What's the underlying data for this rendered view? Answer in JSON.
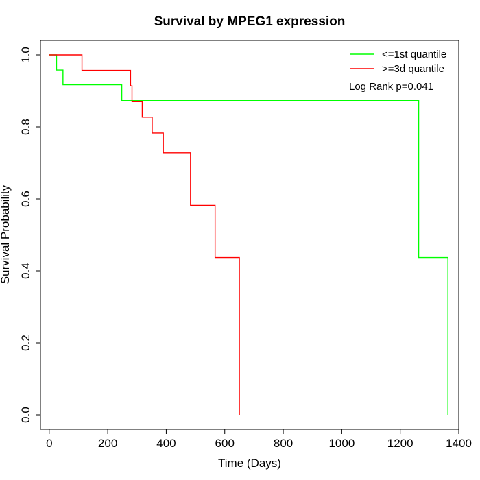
{
  "chart_data": {
    "type": "line",
    "title": "Survival by MPEG1 expression",
    "xlabel": "Time (Days)",
    "ylabel": "Survival Probability",
    "xlim": [
      -30,
      1400
    ],
    "ylim": [
      -0.04,
      1.04
    ],
    "xticks": [
      0,
      200,
      400,
      600,
      800,
      1000,
      1200,
      1400
    ],
    "yticks": [
      0.0,
      0.2,
      0.4,
      0.6,
      0.8,
      1.0
    ],
    "xtick_labels": [
      "0",
      "200",
      "400",
      "600",
      "800",
      "1000",
      "1200",
      "1400"
    ],
    "ytick_labels": [
      "0.0",
      "0.2",
      "0.4",
      "0.6",
      "0.8",
      "1.0"
    ],
    "grid": false,
    "legend_position": "top-right",
    "annotation": "Log Rank p=0.041",
    "series": [
      {
        "name": "<=1st quantile",
        "color": "#00ff00",
        "steps": [
          {
            "x": 0,
            "y": 1.0
          },
          {
            "x": 25,
            "y": 0.958
          },
          {
            "x": 47,
            "y": 0.917
          },
          {
            "x": 248,
            "y": 0.873
          },
          {
            "x": 1263,
            "y": 0.437
          },
          {
            "x": 1363,
            "y": 0.0
          }
        ],
        "end_x": 1363
      },
      {
        "name": ">=3d quantile",
        "color": "#ff0000",
        "steps": [
          {
            "x": 0,
            "y": 1.0
          },
          {
            "x": 112,
            "y": 0.957
          },
          {
            "x": 278,
            "y": 0.914
          },
          {
            "x": 283,
            "y": 0.87
          },
          {
            "x": 318,
            "y": 0.827
          },
          {
            "x": 352,
            "y": 0.783
          },
          {
            "x": 390,
            "y": 0.728
          },
          {
            "x": 483,
            "y": 0.582
          },
          {
            "x": 567,
            "y": 0.437
          },
          {
            "x": 650,
            "y": 0.0
          }
        ],
        "end_x": 650
      }
    ]
  }
}
